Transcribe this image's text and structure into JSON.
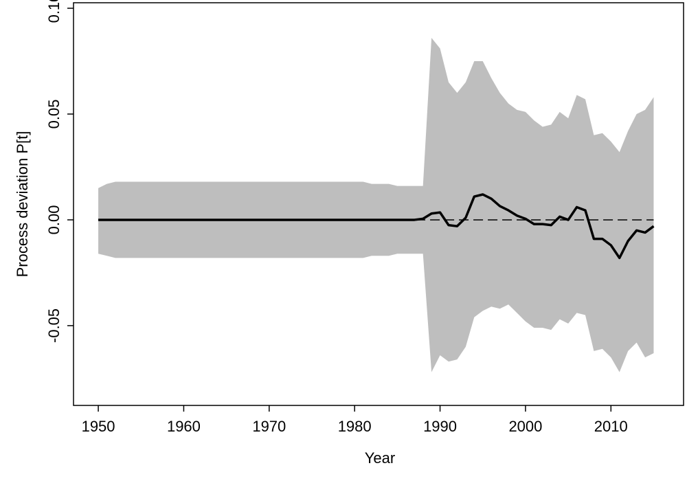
{
  "chart_data": {
    "type": "line",
    "xlabel": "Year",
    "ylabel": "Process deviation P[t]",
    "x": [
      1950,
      1951,
      1952,
      1953,
      1954,
      1955,
      1956,
      1957,
      1958,
      1959,
      1960,
      1961,
      1962,
      1963,
      1964,
      1965,
      1966,
      1967,
      1968,
      1969,
      1970,
      1971,
      1972,
      1973,
      1974,
      1975,
      1976,
      1977,
      1978,
      1979,
      1980,
      1981,
      1982,
      1983,
      1984,
      1985,
      1986,
      1987,
      1988,
      1989,
      1990,
      1991,
      1992,
      1993,
      1994,
      1995,
      1996,
      1997,
      1998,
      1999,
      2000,
      2001,
      2002,
      2003,
      2004,
      2005,
      2006,
      2007,
      2008,
      2009,
      2010,
      2011,
      2012,
      2013,
      2014,
      2015
    ],
    "values": [
      0,
      0,
      0,
      0,
      0,
      0,
      0,
      0,
      0,
      0,
      0,
      0,
      0,
      0,
      0,
      0,
      0,
      0,
      0,
      0,
      0,
      0,
      0,
      0,
      0,
      0,
      0,
      0,
      0,
      0,
      0,
      0,
      0,
      0,
      0,
      0,
      0,
      0,
      0.0005,
      0.003,
      0.0035,
      -0.0025,
      -0.003,
      0.001,
      0.011,
      0.012,
      0.01,
      0.0065,
      0.0045,
      0.002,
      0.0005,
      -0.002,
      -0.002,
      -0.0025,
      0.0015,
      0,
      0.006,
      0.0045,
      -0.009,
      -0.009,
      -0.012,
      -0.018,
      -0.01,
      -0.005,
      -0.006,
      -0.003
    ],
    "band_upper": [
      0.015,
      0.017,
      0.018,
      0.018,
      0.018,
      0.018,
      0.018,
      0.018,
      0.018,
      0.018,
      0.018,
      0.018,
      0.018,
      0.018,
      0.018,
      0.018,
      0.018,
      0.018,
      0.018,
      0.018,
      0.018,
      0.018,
      0.018,
      0.018,
      0.018,
      0.018,
      0.018,
      0.018,
      0.018,
      0.018,
      0.018,
      0.018,
      0.017,
      0.017,
      0.017,
      0.016,
      0.016,
      0.016,
      0.016,
      0.086,
      0.081,
      0.065,
      0.06,
      0.065,
      0.075,
      0.075,
      0.067,
      0.06,
      0.055,
      0.052,
      0.051,
      0.047,
      0.044,
      0.045,
      0.051,
      0.048,
      0.059,
      0.057,
      0.04,
      0.041,
      0.037,
      0.032,
      0.042,
      0.05,
      0.052,
      0.058
    ],
    "band_lower": [
      -0.016,
      -0.017,
      -0.018,
      -0.018,
      -0.018,
      -0.018,
      -0.018,
      -0.018,
      -0.018,
      -0.018,
      -0.018,
      -0.018,
      -0.018,
      -0.018,
      -0.018,
      -0.018,
      -0.018,
      -0.018,
      -0.018,
      -0.018,
      -0.018,
      -0.018,
      -0.018,
      -0.018,
      -0.018,
      -0.018,
      -0.018,
      -0.018,
      -0.018,
      -0.018,
      -0.018,
      -0.018,
      -0.017,
      -0.017,
      -0.017,
      -0.016,
      -0.016,
      -0.016,
      -0.016,
      -0.072,
      -0.064,
      -0.067,
      -0.066,
      -0.06,
      -0.046,
      -0.043,
      -0.041,
      -0.042,
      -0.04,
      -0.044,
      -0.048,
      -0.051,
      -0.051,
      -0.052,
      -0.047,
      -0.049,
      -0.044,
      -0.045,
      -0.062,
      -0.061,
      -0.065,
      -0.072,
      -0.062,
      -0.058,
      -0.065,
      -0.063
    ],
    "color": "#000000",
    "band_color": "#bebebe",
    "hline": 0,
    "xlim": [
      1947.1,
      2018.5
    ],
    "ylim": [
      -0.0877,
      0.1026
    ],
    "xticks": [
      1950,
      1960,
      1970,
      1980,
      1990,
      2000,
      2010
    ],
    "yticks": [
      -0.05,
      {
        "value": 0,
        "label": "0.00"
      },
      0.05,
      {
        "value": 0.1,
        "label": "0.10"
      }
    ]
  }
}
